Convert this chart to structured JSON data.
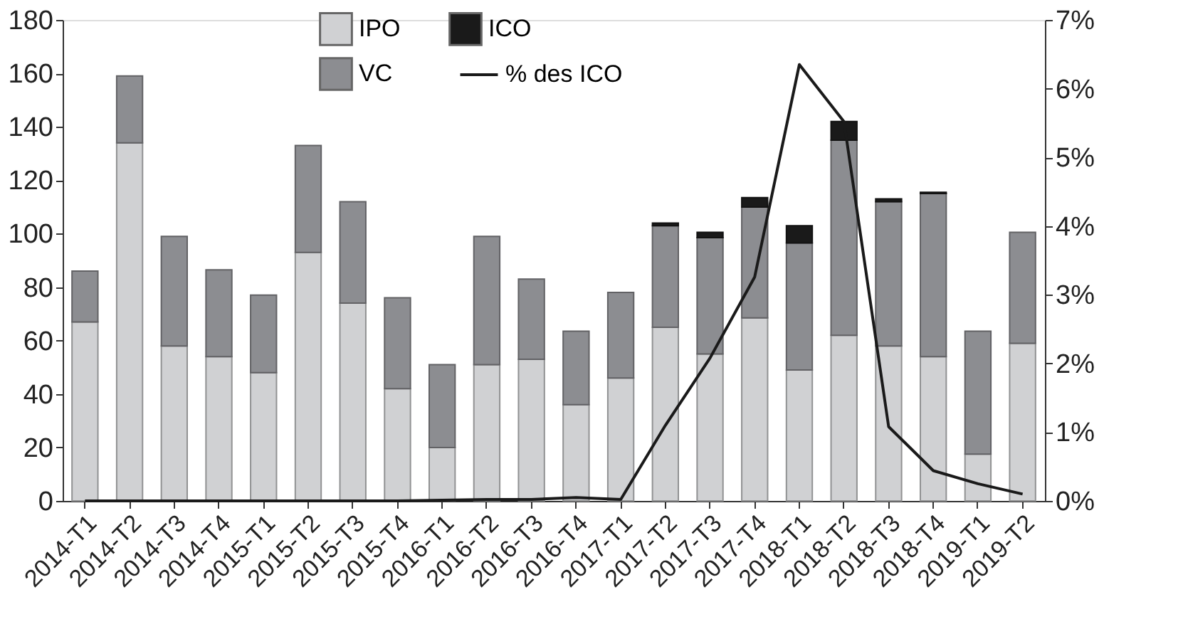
{
  "chart_data": {
    "type": "bar",
    "stacked": true,
    "categories": [
      "2014-T1",
      "2014-T2",
      "2014-T3",
      "2014-T4",
      "2015-T1",
      "2015-T2",
      "2015-T3",
      "2015-T4",
      "2016-T1",
      "2016-T2",
      "2016-T3",
      "2016-T4",
      "2017-T1",
      "2017-T2",
      "2017-T3",
      "2017-T4",
      "2018-T1",
      "2018-T2",
      "2018-T3",
      "2018-T4",
      "2019-T1",
      "2019-T2"
    ],
    "series": [
      {
        "name": "IPO",
        "color": "#d0d1d3",
        "values": [
          67,
          134,
          58,
          54,
          48,
          93,
          74,
          42,
          20,
          51,
          53,
          36,
          46,
          65,
          55,
          68.5,
          49,
          62,
          58,
          54,
          17.5,
          59
        ]
      },
      {
        "name": "VC",
        "color": "#8c8d91",
        "values": [
          19,
          25,
          41,
          32.5,
          29,
          40,
          38,
          34,
          31,
          48,
          30,
          27.5,
          32,
          38,
          43.5,
          41.5,
          47.5,
          73,
          54,
          61,
          46,
          41.5
        ]
      },
      {
        "name": "ICO",
        "color": "#1a1a1a",
        "values": [
          0,
          0,
          0,
          0,
          0,
          0,
          0,
          0,
          0,
          0,
          0,
          0,
          0,
          1,
          2,
          3.5,
          6.5,
          7,
          1,
          0.5,
          0,
          0
        ]
      },
      {
        "name": "% des ICO",
        "type": "line",
        "axis": "y2",
        "color": "#1a1a1a",
        "values": [
          0,
          0,
          0,
          0,
          0,
          0,
          0,
          0,
          0.01,
          0.02,
          0.02,
          0.05,
          0.02,
          1.1,
          2.08,
          3.26,
          6.35,
          5.52,
          1.08,
          0.44,
          0.25,
          0.1
        ]
      }
    ],
    "ylim": [
      0,
      180
    ],
    "yticks": [
      0,
      20,
      40,
      60,
      80,
      100,
      120,
      140,
      160,
      180
    ],
    "y2lim": [
      0,
      7
    ],
    "y2ticks": [
      {
        "value": 0,
        "label": "0%"
      },
      {
        "value": 1,
        "label": "1%"
      },
      {
        "value": 2,
        "label": "2%"
      },
      {
        "value": 3,
        "label": "3%"
      },
      {
        "value": 4,
        "label": "4%"
      },
      {
        "value": 5,
        "label": "5%"
      },
      {
        "value": 6,
        "label": "6%"
      },
      {
        "value": 7,
        "label": "7%"
      }
    ],
    "grid": false,
    "legend": "top",
    "marker": "none",
    "line_style": "solid"
  }
}
